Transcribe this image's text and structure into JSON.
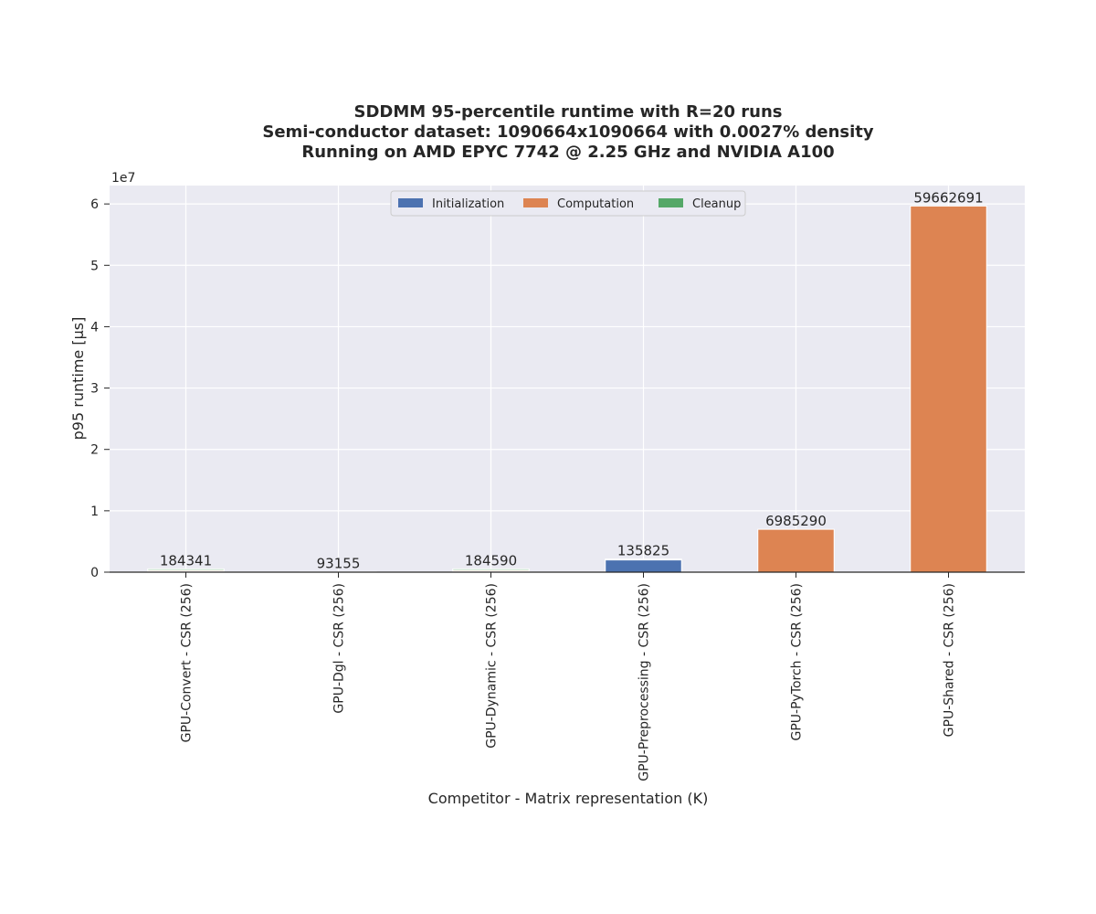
{
  "chart_data": {
    "type": "bar",
    "stacked": true,
    "title": [
      "SDDMM 95-percentile runtime with R=20 runs",
      "Semi-conductor dataset: 1090664x1090664 with 0.0027% density",
      "Running on AMD EPYC 7742 @ 2.25 GHz and NVIDIA A100"
    ],
    "xlabel": "Competitor - Matrix representation (K)",
    "ylabel": "p95 runtime [µs]",
    "y_scale_label": "1e7",
    "y_multiplier": 10000000,
    "ylim": [
      0,
      63000000
    ],
    "yticks": [
      0,
      10000000,
      20000000,
      30000000,
      40000000,
      50000000,
      60000000
    ],
    "ytick_labels": [
      "0",
      "1",
      "2",
      "3",
      "4",
      "5",
      "6"
    ],
    "categories": [
      "GPU-Convert - CSR (256)",
      "GPU-Dgl - CSR (256)",
      "GPU-Dynamic - CSR (256)",
      "GPU-Preprocessing - CSR (256)",
      "GPU-PyTorch - CSR (256)",
      "GPU-Shared - CSR (256)"
    ],
    "series": [
      {
        "name": "Initialization",
        "color": "#4c72b0",
        "values": [
          150000,
          0,
          150000,
          2000000,
          0,
          0
        ]
      },
      {
        "name": "Computation",
        "color": "#dd8452",
        "values": [
          184341,
          93155,
          184590,
          135825,
          6985290,
          59662691
        ]
      },
      {
        "name": "Cleanup",
        "color": "#55a868",
        "values": [
          200000,
          0,
          200000,
          0,
          0,
          0
        ]
      }
    ],
    "data_labels": [
      "184341",
      "93155",
      "184590",
      "135825",
      "6985290",
      "59662691"
    ],
    "grid": true,
    "legend_position": "upper center",
    "legend_columns": 3,
    "background_color": "#eaeaf2",
    "grid_color": "#ffffff"
  }
}
